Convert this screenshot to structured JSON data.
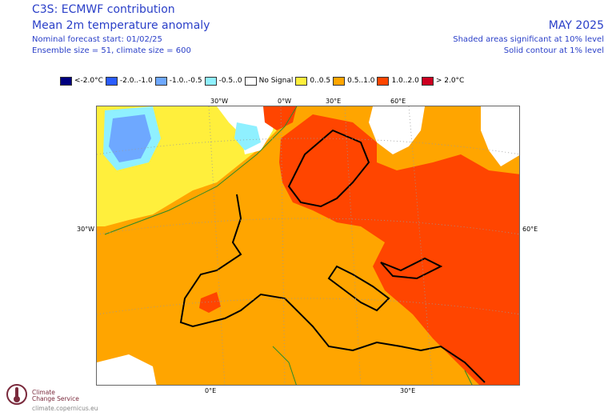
{
  "header": {
    "title": "C3S: ECMWF contribution",
    "subtitle": "Mean 2m temperature anomaly",
    "forecast_start": "Nominal forecast start: 01/02/25",
    "ensemble": "Ensemble size = 51, climate size = 600",
    "period": "MAY 2025",
    "shading_note": "Shaded areas significant at 10% level",
    "contour_note": "Solid contour at 1% level"
  },
  "legend": [
    {
      "label": "<-2.0°C",
      "color": "#00007f"
    },
    {
      "label": "-2.0..-1.0",
      "color": "#2a5cff"
    },
    {
      "label": "-1.0..-0.5",
      "color": "#6ea8ff"
    },
    {
      "label": "-0.5..0",
      "color": "#8ff0ff"
    },
    {
      "label": "No Signal",
      "color": "#ffffff"
    },
    {
      "label": "0..0.5",
      "color": "#ffef3c"
    },
    {
      "label": "0.5..1.0",
      "color": "#ffa500"
    },
    {
      "label": "1.0..2.0",
      "color": "#ff4500"
    },
    {
      "label": "> 2.0°C",
      "color": "#cc0020"
    }
  ],
  "axes": {
    "top": [
      "30°W",
      "0°W",
      "30°E",
      "60°E"
    ],
    "left": "30°W",
    "right": "60°E",
    "bottom": [
      "0°E",
      "30°E"
    ]
  },
  "logo": {
    "line1": "Climate",
    "line2": "Change Service",
    "url": "climate.copernicus.eu"
  }
}
